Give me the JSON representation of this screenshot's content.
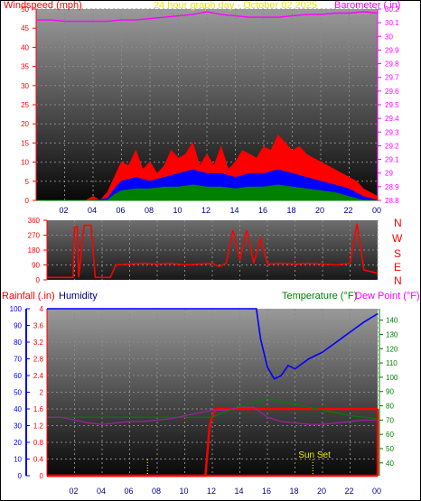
{
  "chart_data": [
    {
      "type": "line",
      "title": "24 hour graph day - October 02 2025",
      "ylabel_left": "Windspeed (mph)",
      "ylabel_right": "Barometer (.in)",
      "colors": {
        "title": "#e8e800",
        "windspeed_label": "#ff0000",
        "barometer_label": "#ff00ff"
      },
      "x_ticks": [
        "02",
        "04",
        "06",
        "08",
        "10",
        "12",
        "14",
        "16",
        "18",
        "20",
        "22",
        "00"
      ],
      "y_left_ticks": [
        0,
        5,
        10,
        15,
        20,
        25,
        30,
        35,
        40,
        45,
        50
      ],
      "ylim_left": [
        0,
        50
      ],
      "y_right_ticks": [
        "28.8",
        "28.9",
        "29",
        "29.1",
        "29.2",
        "29.3",
        "29.4",
        "29.5",
        "29.6",
        "29.7",
        "29.8",
        "29.9",
        "30",
        "30.1",
        "30.2"
      ],
      "ylim_right": [
        28.8,
        30.2
      ],
      "series": [
        {
          "key": "barometer",
          "axis": "right",
          "color": "#ff00ff",
          "x": [
            0,
            1,
            2,
            3,
            4,
            5,
            6,
            7,
            8,
            9,
            10,
            11,
            11.5,
            12,
            13,
            14,
            15,
            16,
            17,
            18,
            19,
            20,
            21,
            22,
            23,
            24
          ],
          "values": [
            30.12,
            30.12,
            30.11,
            30.11,
            30.11,
            30.11,
            30.12,
            30.12,
            30.13,
            30.14,
            30.15,
            30.16,
            30.17,
            30.18,
            30.16,
            30.15,
            30.14,
            30.14,
            30.14,
            30.15,
            30.16,
            30.16,
            30.17,
            30.17,
            30.18,
            30.17
          ]
        },
        {
          "key": "wind_gust",
          "axis": "left",
          "color": "#ff0000",
          "x": [
            0,
            1,
            2,
            3,
            3.5,
            4,
            4.5,
            5,
            5.5,
            6,
            6.5,
            7,
            7.5,
            8,
            8.5,
            9,
            9.5,
            10,
            10.5,
            11,
            11.5,
            12,
            12.5,
            13,
            13.5,
            14,
            14.5,
            15,
            15.5,
            16,
            16.5,
            17,
            17.5,
            18,
            18.5,
            19,
            19.5,
            20,
            20.5,
            21,
            21.5,
            22,
            22.5,
            23,
            23.5,
            24
          ],
          "values": [
            0,
            0,
            0,
            0,
            0,
            1,
            0,
            2,
            6,
            10,
            9,
            13,
            8,
            10,
            7,
            9,
            13,
            11,
            12,
            15,
            9,
            12,
            9,
            14,
            8,
            10,
            13,
            12,
            11,
            14,
            13,
            17,
            15,
            13,
            14,
            12,
            11,
            10,
            9,
            8,
            7,
            6,
            5,
            3,
            2,
            1
          ]
        },
        {
          "key": "wind_avg",
          "axis": "left",
          "color": "#0000ff",
          "x": [
            0,
            3,
            4,
            5,
            5.5,
            6,
            7,
            8,
            9,
            10,
            11,
            12,
            13,
            14,
            15,
            16,
            17,
            18,
            19,
            20,
            21,
            22,
            23,
            24
          ],
          "values": [
            0,
            0,
            0,
            0.5,
            3,
            5,
            6,
            5,
            6,
            7,
            8,
            7,
            7,
            6,
            7,
            7,
            8,
            7,
            6,
            5,
            4,
            3,
            1,
            0
          ]
        },
        {
          "key": "wind_low",
          "axis": "left",
          "color": "#008000",
          "x": [
            0,
            5,
            5.5,
            6,
            7,
            8,
            9,
            10,
            11,
            12,
            13,
            14,
            15,
            16,
            17,
            18,
            19,
            20,
            21,
            22,
            23,
            24
          ],
          "values": [
            0,
            0,
            1.5,
            2.5,
            3,
            3,
            3.5,
            3.5,
            4,
            3.5,
            3.5,
            3,
            3.5,
            3.5,
            4,
            3.5,
            3,
            2.5,
            2,
            1,
            0,
            0
          ]
        }
      ]
    },
    {
      "type": "line",
      "ylabel_right_letters": [
        "N",
        "W",
        "S",
        "E",
        "N"
      ],
      "y_ticks": [
        0,
        90,
        180,
        270,
        360
      ],
      "ylim": [
        0,
        360
      ],
      "x_ticks": [
        "02",
        "04",
        "06",
        "08",
        "10",
        "12",
        "14",
        "16",
        "18",
        "20",
        "22",
        "00"
      ],
      "series": [
        {
          "key": "wind_direction",
          "color": "#ff0000",
          "x": [
            0,
            1.9,
            2,
            2.2,
            2.3,
            2.7,
            3.2,
            3.5,
            4.3,
            4.6,
            5,
            6,
            7,
            8,
            9,
            10,
            11,
            12,
            12.5,
            13,
            13.5,
            14,
            14.5,
            15,
            15.5,
            16,
            17,
            18,
            19,
            20,
            21,
            22,
            22.5,
            23,
            24
          ],
          "values": [
            15,
            15,
            320,
            320,
            15,
            330,
            330,
            15,
            15,
            15,
            90,
            95,
            100,
            95,
            100,
            90,
            95,
            100,
            80,
            100,
            300,
            120,
            300,
            100,
            250,
            95,
            100,
            95,
            100,
            95,
            90,
            100,
            340,
            60,
            40
          ]
        }
      ]
    },
    {
      "type": "line",
      "ylabel_left": "Rainfall (.in)",
      "ylabel_humidity": "Humidity",
      "ylabel_right": "Temperature (°F)",
      "ylabel_right2": "Dew Point (°F)",
      "colors": {
        "rain_label": "#ff0000",
        "humidity_label": "#000080",
        "temp_label": "#008000",
        "dew_label": "#ff00ff"
      },
      "x_ticks": [
        "02",
        "04",
        "06",
        "08",
        "10",
        "12",
        "14",
        "16",
        "18",
        "20",
        "22",
        "00"
      ],
      "humidity_ticks": [
        0,
        10,
        20,
        30,
        40,
        50,
        60,
        70,
        80,
        90,
        100
      ],
      "rain_ticks": [
        "0",
        "0.4",
        "0.8",
        "1.2",
        "1.6",
        "2",
        "2.4",
        "2.8",
        "3.2",
        "3.6",
        "4"
      ],
      "temp_ticks": [
        40,
        50,
        60,
        70,
        80,
        90,
        100,
        110,
        120,
        130,
        140
      ],
      "ylim_humidity": [
        0,
        100
      ],
      "ylim_rain": [
        0,
        4
      ],
      "ylim_temp": [
        31,
        148
      ],
      "annotation": "Sun Set",
      "vertical_markers": [
        7.3,
        19.3
      ],
      "series": [
        {
          "key": "humidity",
          "axis": "humidity",
          "color": "#0000ff",
          "x": [
            0,
            15.2,
            15.5,
            16,
            16.5,
            17,
            17.5,
            18,
            18.5,
            19,
            20,
            21,
            22,
            23,
            24
          ],
          "values": [
            100,
            100,
            82,
            65,
            58,
            60,
            66,
            64,
            67,
            70,
            74,
            80,
            86,
            92,
            97
          ]
        },
        {
          "key": "rainfall",
          "axis": "rain",
          "color": "#ff0000",
          "x": [
            0,
            11.5,
            11.8,
            12.2,
            24
          ],
          "values": [
            0,
            0,
            1.2,
            1.6,
            1.6
          ]
        },
        {
          "key": "temperature",
          "axis": "temp",
          "color": "#008000",
          "x": [
            0,
            12,
            14,
            15,
            16,
            17,
            18,
            19,
            20,
            21,
            22,
            23,
            24
          ],
          "values": [
            72,
            72,
            80,
            82,
            85,
            83,
            81,
            79,
            77,
            75,
            73,
            72,
            71
          ]
        },
        {
          "key": "dew_point",
          "axis": "temp",
          "color": "#a020a0",
          "x": [
            0,
            1,
            2,
            3,
            4,
            5,
            6,
            7,
            8,
            9,
            10,
            11,
            12,
            13,
            14,
            15,
            16,
            17,
            18,
            19,
            20,
            21,
            22,
            23,
            24
          ],
          "values": [
            72,
            72,
            70,
            68,
            67,
            68,
            69,
            69,
            70,
            71,
            73,
            75,
            77,
            77,
            79,
            79,
            72,
            69,
            68,
            67,
            67,
            68,
            69,
            70,
            70
          ]
        }
      ]
    }
  ]
}
